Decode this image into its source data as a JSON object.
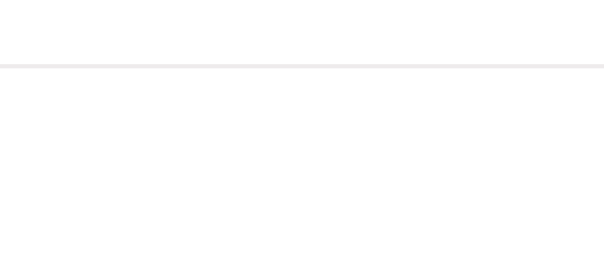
{
  "colors": {
    "background": "#ffffff",
    "divider": "#eeebec"
  }
}
